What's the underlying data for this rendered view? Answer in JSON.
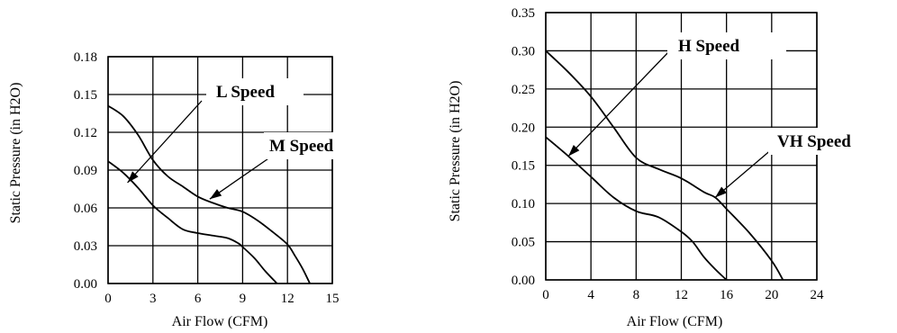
{
  "chart_data": [
    {
      "type": "line",
      "xlabel": "Air Flow (CFM)",
      "ylabel": "Static Pressure (in H2O)",
      "xlim": [
        0,
        15
      ],
      "ylim": [
        0,
        0.18
      ],
      "x_ticks": [
        "0",
        "3",
        "6",
        "9",
        "12",
        "15"
      ],
      "y_ticks": [
        "0.00",
        "0.03",
        "0.06",
        "0.09",
        "0.12",
        "0.15",
        "0.18"
      ],
      "grid": true,
      "series": [
        {
          "name": "L Speed",
          "points": [
            [
              0,
              0.097
            ],
            [
              1,
              0.088
            ],
            [
              2,
              0.076
            ],
            [
              3,
              0.062
            ],
            [
              4,
              0.052
            ],
            [
              5,
              0.043
            ],
            [
              6,
              0.04
            ],
            [
              7,
              0.038
            ],
            [
              8,
              0.036
            ],
            [
              8.7,
              0.032
            ],
            [
              9,
              0.029
            ],
            [
              9.8,
              0.02
            ],
            [
              10.5,
              0.01
            ],
            [
              11.3,
              0.0
            ]
          ]
        },
        {
          "name": "M Speed",
          "points": [
            [
              0,
              0.141
            ],
            [
              1,
              0.133
            ],
            [
              2,
              0.118
            ],
            [
              3,
              0.098
            ],
            [
              4,
              0.085
            ],
            [
              5,
              0.077
            ],
            [
              6,
              0.069
            ],
            [
              7,
              0.064
            ],
            [
              8,
              0.06
            ],
            [
              9,
              0.057
            ],
            [
              10,
              0.05
            ],
            [
              11,
              0.041
            ],
            [
              12,
              0.031
            ],
            [
              12.5,
              0.022
            ],
            [
              13.0,
              0.012
            ],
            [
              13.5,
              0.0
            ]
          ]
        }
      ],
      "annotations": [
        {
          "text": "L Speed",
          "target": [
            1.3,
            0.08
          ]
        },
        {
          "text": "M Speed",
          "target": [
            6.8,
            0.067
          ]
        }
      ]
    },
    {
      "type": "line",
      "xlabel": "Air Flow (CFM)",
      "ylabel": "Static Pressure (in H2O)",
      "xlim": [
        0,
        24
      ],
      "ylim": [
        0,
        0.35
      ],
      "x_ticks": [
        "0",
        "4",
        "8",
        "12",
        "16",
        "20",
        "24"
      ],
      "y_ticks": [
        "0.00",
        "0.05",
        "0.10",
        "0.15",
        "0.20",
        "0.25",
        "0.30",
        "0.35"
      ],
      "grid": true,
      "series": [
        {
          "name": "H Speed",
          "points": [
            [
              0,
              0.187
            ],
            [
              2,
              0.162
            ],
            [
              4,
              0.135
            ],
            [
              6,
              0.108
            ],
            [
              8,
              0.09
            ],
            [
              10,
              0.082
            ],
            [
              12,
              0.063
            ],
            [
              13,
              0.05
            ],
            [
              14,
              0.03
            ],
            [
              15,
              0.014
            ],
            [
              16,
              0.0
            ]
          ]
        },
        {
          "name": "VH Speed",
          "points": [
            [
              0,
              0.3
            ],
            [
              2,
              0.272
            ],
            [
              4,
              0.24
            ],
            [
              6,
              0.2
            ],
            [
              8,
              0.16
            ],
            [
              10,
              0.145
            ],
            [
              12,
              0.133
            ],
            [
              14,
              0.115
            ],
            [
              15,
              0.108
            ],
            [
              16,
              0.093
            ],
            [
              18,
              0.062
            ],
            [
              20,
              0.025
            ],
            [
              21,
              0.0
            ]
          ]
        }
      ],
      "annotations": [
        {
          "text": "H Speed",
          "target": [
            2.0,
            0.162
          ]
        },
        {
          "text": "VH Speed",
          "target": [
            15.0,
            0.108
          ]
        }
      ]
    }
  ]
}
